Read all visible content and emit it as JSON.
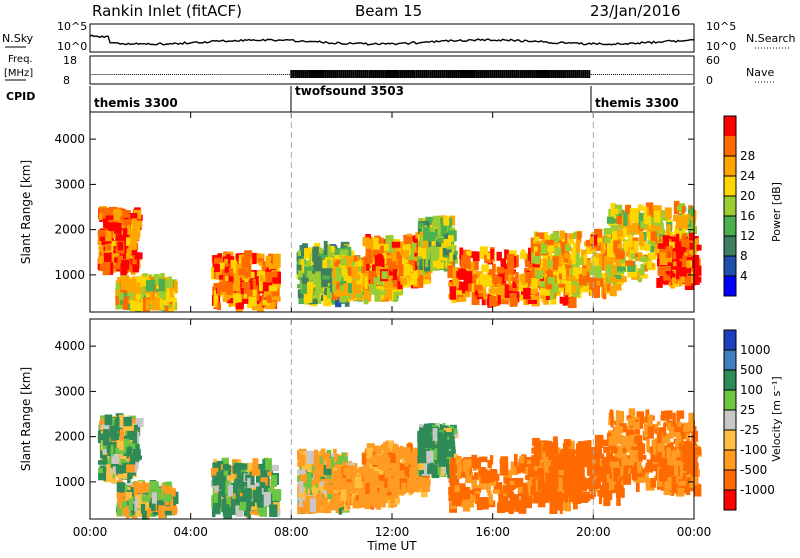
{
  "header": {
    "station": "Rankin Inlet (fitACF)",
    "beam": "Beam 15",
    "date": "23/Jan/2016"
  },
  "panels": {
    "nsky": {
      "label": "N.Sky",
      "ticks_left": [
        "10^5",
        "10^0"
      ],
      "ticks_right": [
        "10^5",
        "10^0"
      ],
      "right_label": "N.Search"
    },
    "freq": {
      "label_line1": "Freq.",
      "label_line2": "[MHz]",
      "tick_left": [
        "18",
        "8"
      ],
      "ticks_right": [
        "60",
        "0"
      ],
      "right_label": "Nave"
    },
    "cpid": {
      "label": "CPID",
      "segments": [
        "themis 3300",
        "twofsound 3503",
        "themis 3300"
      ]
    }
  },
  "colorbars": {
    "power": {
      "title": "Power [dB]",
      "ticks": [
        "4",
        "8",
        "12",
        "16",
        "20",
        "24",
        "28"
      ],
      "colors": [
        "#0000ff",
        "#1f4fa8",
        "#3f7f5f",
        "#4caf50",
        "#9acd32",
        "#ffd700",
        "#ffa500",
        "#ff6a00",
        "#ff0000"
      ]
    },
    "velocity": {
      "title": "Velocity [m s⁻¹]",
      "ticks": [
        "1000",
        "500",
        "100",
        "25",
        "-25",
        "-100",
        "-500",
        "-1000"
      ],
      "colors": [
        "#1c3fbf",
        "#3f7fbf",
        "#2e8b57",
        "#6cc644",
        "#c8c8c8",
        "#ffbf40",
        "#ff9b20",
        "#ff6a00",
        "#ff0000"
      ]
    }
  },
  "chart_data": [
    {
      "type": "heatmap",
      "title": "Power",
      "xlabel": "",
      "ylabel": "Slant Range [km]",
      "xlim": [
        0,
        24
      ],
      "ylim": [
        180,
        4600
      ],
      "yticks": [
        "1000",
        "2000",
        "3000",
        "4000"
      ],
      "ytick_values": [
        1000,
        2000,
        3000,
        4000
      ],
      "xticks": [
        "00:00",
        "04:00",
        "08:00",
        "12:00",
        "16:00",
        "20:00",
        "00:00"
      ],
      "regions": [
        {
          "t0": 0.3,
          "t1": 1.8,
          "r0": 1100,
          "r1": 2400,
          "level": 28
        },
        {
          "t0": 1.0,
          "t1": 3.2,
          "r0": 300,
          "r1": 900,
          "level": 20
        },
        {
          "t0": 4.8,
          "t1": 7.3,
          "r0": 300,
          "r1": 1400,
          "level": 26
        },
        {
          "t0": 8.2,
          "t1": 10.2,
          "r0": 400,
          "r1": 1600,
          "level": 14
        },
        {
          "t0": 9.6,
          "t1": 12.2,
          "r0": 500,
          "r1": 1300,
          "level": 20
        },
        {
          "t0": 10.8,
          "t1": 13.3,
          "r0": 800,
          "r1": 1800,
          "level": 24
        },
        {
          "t0": 13.0,
          "t1": 14.3,
          "r0": 1200,
          "r1": 2200,
          "level": 16
        },
        {
          "t0": 14.2,
          "t1": 19.2,
          "r0": 400,
          "r1": 1500,
          "level": 26
        },
        {
          "t0": 17.5,
          "t1": 21.0,
          "r0": 600,
          "r1": 1900,
          "level": 22
        },
        {
          "t0": 20.5,
          "t1": 23.9,
          "r0": 900,
          "r1": 2500,
          "level": 20
        },
        {
          "t0": 22.5,
          "t1": 24.0,
          "r0": 800,
          "r1": 1800,
          "level": 28
        }
      ]
    },
    {
      "type": "heatmap",
      "title": "Velocity",
      "xlabel": "Time UT",
      "ylabel": "Slant Range [km]",
      "xlim": [
        0,
        24
      ],
      "ylim": [
        180,
        4600
      ],
      "yticks": [
        "1000",
        "2000",
        "3000",
        "4000"
      ],
      "ytick_values": [
        1000,
        2000,
        3000,
        4000
      ],
      "xticks": [
        "00:00",
        "04:00",
        "08:00",
        "12:00",
        "16:00",
        "20:00",
        "00:00"
      ],
      "regions": [
        {
          "t0": 0.3,
          "t1": 1.8,
          "r0": 1100,
          "r1": 2400,
          "level": 100
        },
        {
          "t0": 1.0,
          "t1": 3.2,
          "r0": 300,
          "r1": 900,
          "level": 0
        },
        {
          "t0": 4.8,
          "t1": 7.3,
          "r0": 300,
          "r1": 1400,
          "level": 100
        },
        {
          "t0": 8.2,
          "t1": 10.2,
          "r0": 400,
          "r1": 1600,
          "level": -100
        },
        {
          "t0": 9.6,
          "t1": 12.2,
          "r0": 500,
          "r1": 1300,
          "level": -300
        },
        {
          "t0": 10.8,
          "t1": 13.3,
          "r0": 800,
          "r1": 1800,
          "level": -300
        },
        {
          "t0": 13.0,
          "t1": 14.3,
          "r0": 1200,
          "r1": 2200,
          "level": 200
        },
        {
          "t0": 14.2,
          "t1": 19.2,
          "r0": 400,
          "r1": 1500,
          "level": -600
        },
        {
          "t0": 17.5,
          "t1": 21.0,
          "r0": 600,
          "r1": 1900,
          "level": -700
        },
        {
          "t0": 20.5,
          "t1": 23.9,
          "r0": 900,
          "r1": 2500,
          "level": -500
        },
        {
          "t0": 22.5,
          "t1": 24.0,
          "r0": 800,
          "r1": 1800,
          "level": -600
        }
      ]
    }
  ]
}
